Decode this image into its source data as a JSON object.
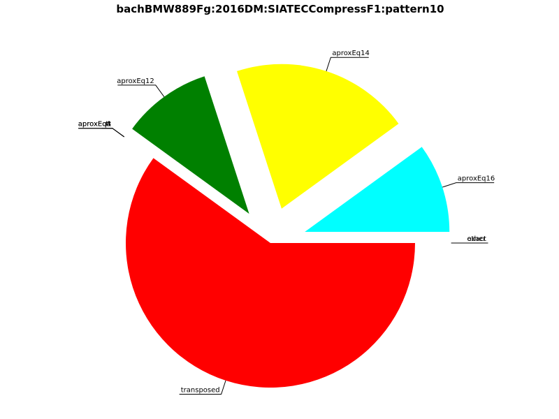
{
  "chart_data": {
    "type": "pie",
    "title": "bachBMW889Fg:2016DM:SIATECCompressF1:pattern10",
    "slices": [
      {
        "label": "aproxEq16",
        "value": 10,
        "color": "#00ffff",
        "exploded": true
      },
      {
        "label": "aproxEq14",
        "value": 20,
        "color": "#ffff00",
        "exploded": true
      },
      {
        "label": "aproxEq12",
        "value": 10,
        "color": "#008000",
        "exploded": true
      },
      {
        "label": "tt",
        "value": 0,
        "color": "#000000",
        "exploded": true
      },
      {
        "label": "aproxEq8",
        "value": 0,
        "color": "#000000",
        "exploded": true
      },
      {
        "label": "aproxEq4",
        "value": 0,
        "color": "#000000",
        "exploded": true
      },
      {
        "label": "transposed",
        "value": 60,
        "color": "#ff0000",
        "exploded": false
      },
      {
        "label": "exact",
        "value": 0,
        "color": "#000000",
        "exploded": true
      },
      {
        "label": "other",
        "value": 0,
        "color": "#000000",
        "exploded": true
      }
    ]
  }
}
